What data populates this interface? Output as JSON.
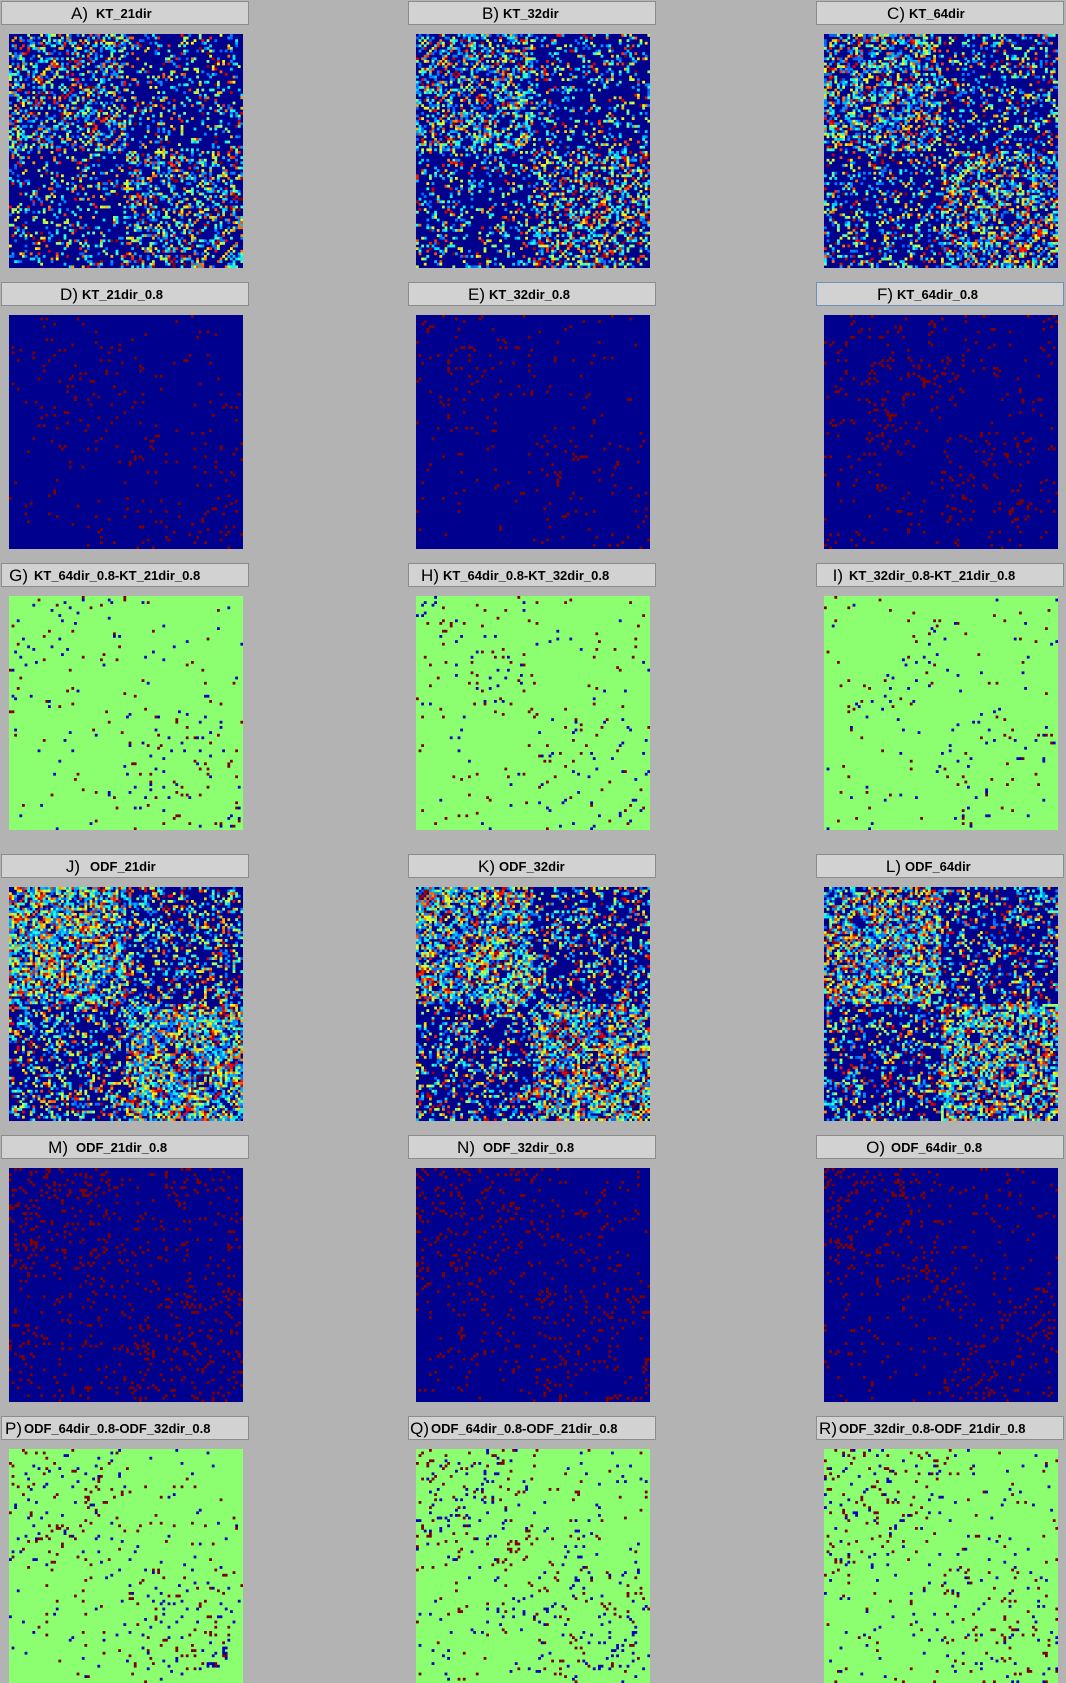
{
  "colors": {
    "background": "#b3b3b3",
    "title_bar": "#d2d2d2",
    "jet_low": "#00008f",
    "jet_high": "#800000",
    "diff_zero": "#8cff70",
    "diff_positive": "#800000",
    "diff_negative": "#0000c0"
  },
  "chart_data": [
    {
      "type": "heatmap",
      "letter": "A)",
      "title": "KT_21dir",
      "colormap": "jet",
      "size": 90,
      "variant": "connectivity",
      "density": 0.32,
      "seed": 11
    },
    {
      "type": "heatmap",
      "letter": "B)",
      "title": "KT_32dir",
      "colormap": "jet",
      "size": 90,
      "variant": "connectivity",
      "density": 0.34,
      "seed": 12
    },
    {
      "type": "heatmap",
      "letter": "C)",
      "title": "KT_64dir",
      "colormap": "jet",
      "size": 90,
      "variant": "connectivity",
      "density": 0.4,
      "seed": 13
    },
    {
      "type": "heatmap",
      "letter": "D)",
      "title": "KT_21dir_0.8",
      "colormap": "jet",
      "size": 90,
      "variant": "threshold",
      "density": 0.03,
      "seed": 21
    },
    {
      "type": "heatmap",
      "letter": "E)",
      "title": "KT_32dir_0.8",
      "colormap": "jet",
      "size": 90,
      "variant": "threshold",
      "density": 0.032,
      "seed": 22
    },
    {
      "type": "heatmap",
      "letter": "F)",
      "title": "KT_64dir_0.8",
      "colormap": "jet",
      "size": 90,
      "variant": "threshold",
      "density": 0.045,
      "seed": 23,
      "selected": true
    },
    {
      "type": "heatmap",
      "letter": "G)",
      "title": "KT_64dir_0.8-KT_21dir_0.8",
      "colormap": "difference",
      "size": 90,
      "variant": "difference",
      "density": 0.03,
      "seed": 31
    },
    {
      "type": "heatmap",
      "letter": "H)",
      "title": "KT_64dir_0.8-KT_32dir_0.8",
      "colormap": "difference",
      "size": 90,
      "variant": "difference",
      "density": 0.028,
      "seed": 32
    },
    {
      "type": "heatmap",
      "letter": "I)",
      "title": "KT_32dir_0.8-KT_21dir_0.8",
      "colormap": "difference",
      "size": 90,
      "variant": "difference",
      "density": 0.024,
      "seed": 33
    },
    {
      "type": "heatmap",
      "letter": "J)",
      "title": "ODF_21dir",
      "colormap": "jet",
      "size": 90,
      "variant": "connectivity",
      "density": 0.55,
      "seed": 41
    },
    {
      "type": "heatmap",
      "letter": "K)",
      "title": "ODF_32dir",
      "colormap": "jet",
      "size": 90,
      "variant": "connectivity",
      "density": 0.5,
      "seed": 42
    },
    {
      "type": "heatmap",
      "letter": "L)",
      "title": "ODF_64dir",
      "colormap": "jet",
      "size": 90,
      "variant": "connectivity",
      "density": 0.5,
      "seed": 43
    },
    {
      "type": "heatmap",
      "letter": "M)",
      "title": "ODF_21dir_0.8",
      "colormap": "jet",
      "size": 90,
      "variant": "threshold",
      "density": 0.09,
      "seed": 51
    },
    {
      "type": "heatmap",
      "letter": "N)",
      "title": "ODF_32dir_0.8",
      "colormap": "jet",
      "size": 90,
      "variant": "threshold",
      "density": 0.07,
      "seed": 52
    },
    {
      "type": "heatmap",
      "letter": "O)",
      "title": "ODF_64dir_0.8",
      "colormap": "jet",
      "size": 90,
      "variant": "threshold",
      "density": 0.055,
      "seed": 53
    },
    {
      "type": "heatmap",
      "letter": "P)",
      "title": "ODF_64dir_0.8-ODF_32dir_0.8",
      "colormap": "difference",
      "size": 90,
      "variant": "difference",
      "density": 0.05,
      "seed": 61
    },
    {
      "type": "heatmap",
      "letter": "Q)",
      "title": "ODF_64dir_0.8-ODF_21dir_0.8",
      "colormap": "difference",
      "size": 90,
      "variant": "difference",
      "density": 0.06,
      "seed": 62
    },
    {
      "type": "heatmap",
      "letter": "R)",
      "title": "ODF_32dir_0.8-ODF_21dir_0.8",
      "colormap": "difference",
      "size": 90,
      "variant": "difference",
      "density": 0.055,
      "seed": 63
    }
  ]
}
